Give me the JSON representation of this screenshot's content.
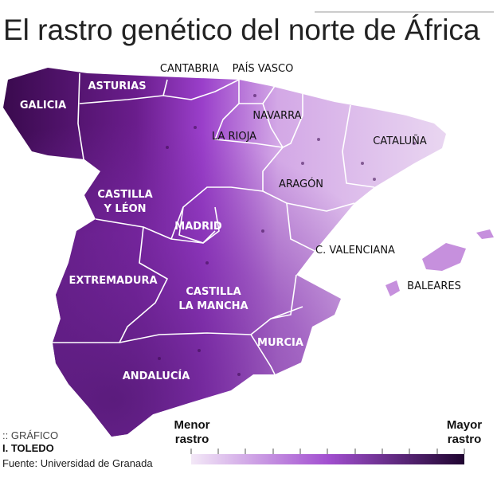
{
  "header": {
    "title": "El rastro genético del norte de África"
  },
  "map": {
    "regions": [
      {
        "lines": [
          "GALICIA"
        ]
      },
      {
        "lines": [
          "ASTURIAS"
        ]
      },
      {
        "lines": [
          "CANTABRIA"
        ]
      },
      {
        "lines": [
          "PAÍS VASCO"
        ]
      },
      {
        "lines": [
          "NAVARRA"
        ]
      },
      {
        "lines": [
          "LA RIOJA"
        ]
      },
      {
        "lines": [
          "CATALUÑA"
        ]
      },
      {
        "lines": [
          "ARAGÓN"
        ]
      },
      {
        "lines": [
          "CASTILLA",
          "Y LÉON"
        ]
      },
      {
        "lines": [
          "MADRID"
        ]
      },
      {
        "lines": [
          "C. VALENCIANA"
        ]
      },
      {
        "lines": [
          "BALEARES"
        ]
      },
      {
        "lines": [
          "EXTREMADURA"
        ]
      },
      {
        "lines": [
          "CASTILLA",
          "LA MANCHA"
        ]
      },
      {
        "lines": [
          "MURCIA"
        ]
      },
      {
        "lines": [
          "ANDALUCÍA"
        ]
      }
    ]
  },
  "legend": {
    "low": [
      "Menor",
      "rastro"
    ],
    "high": [
      "Mayor",
      "rastro"
    ]
  },
  "credits": {
    "section": ":: GRÁFICO",
    "author": "I. TOLEDO",
    "source": "Fuente: Universidad de Granada"
  }
}
